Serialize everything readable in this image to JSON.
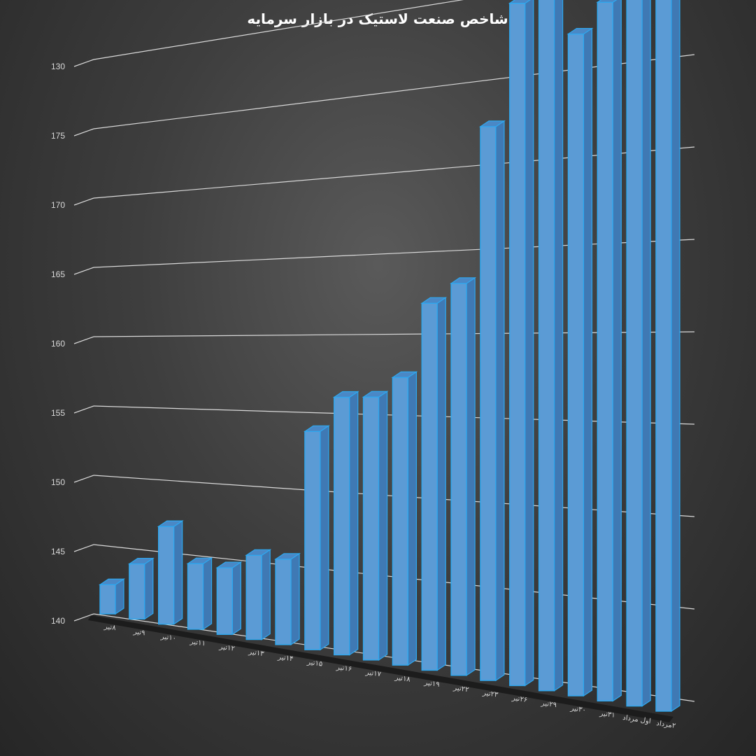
{
  "chart_data": {
    "type": "bar",
    "title": "شاخص صنعت لاستیک در بازار سرمایه",
    "xlabel": "",
    "ylabel": "",
    "y_tick_labels": [
      "140",
      "145",
      "150",
      "155",
      "160",
      "165",
      "170",
      "175",
      "130"
    ],
    "ylim": [
      140,
      180
    ],
    "grid": true,
    "legend": "none",
    "style": "3d-column",
    "bar_color": "#5b9bd5",
    "bar_edge_color": "#2ea8ef",
    "categories": [
      "۸تیر",
      "۹تیر",
      "۱۰تیر",
      "۱۱تیر",
      "۱۲تیر",
      "۱۳تیر",
      "۱۴تیر",
      "۱۵تیر",
      "۱۶تیر",
      "۱۷تیر",
      "۱۸تیر",
      "۱۹تیر",
      "۲۲تیر",
      "۲۳تیر",
      "۲۶تیر",
      "۲۹تیر",
      "۳۰تیر",
      "۳۱تیر",
      "اول مرداد",
      "۲مرداد"
    ],
    "values": [
      142.1,
      143.9,
      146.8,
      144.5,
      144.5,
      145.6,
      145.6,
      154.1,
      156.4,
      156.5,
      157.8,
      162.4,
      163.6,
      172.9,
      180.0,
      180.1,
      177.8,
      179.4,
      180.9,
      181.2
    ]
  }
}
